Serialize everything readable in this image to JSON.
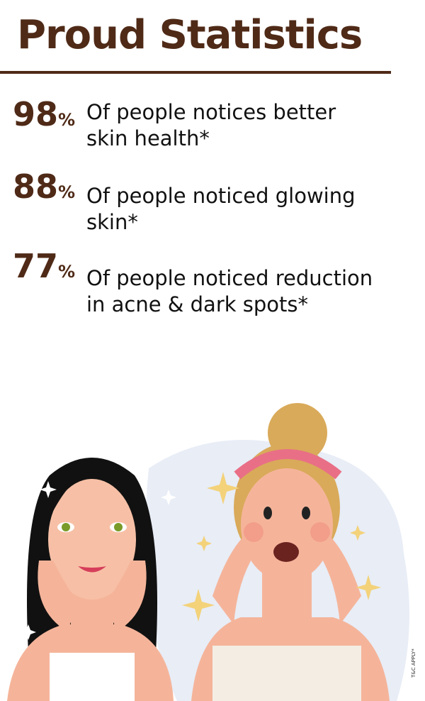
{
  "title": "Proud Statistics",
  "accent_color": "#4f2a17",
  "stats": [
    {
      "value": "98",
      "unit": "%",
      "line1": "Of people notices better",
      "line2": "skin health*"
    },
    {
      "value": "88",
      "unit": "%",
      "line1": "Of people noticed glowing",
      "line2": "skin*"
    },
    {
      "value": "77",
      "unit": "%",
      "line1": "Of people noticed reduction",
      "line2": "in acne & dark spots*"
    }
  ],
  "disclaimer": "T&C APPLY*"
}
